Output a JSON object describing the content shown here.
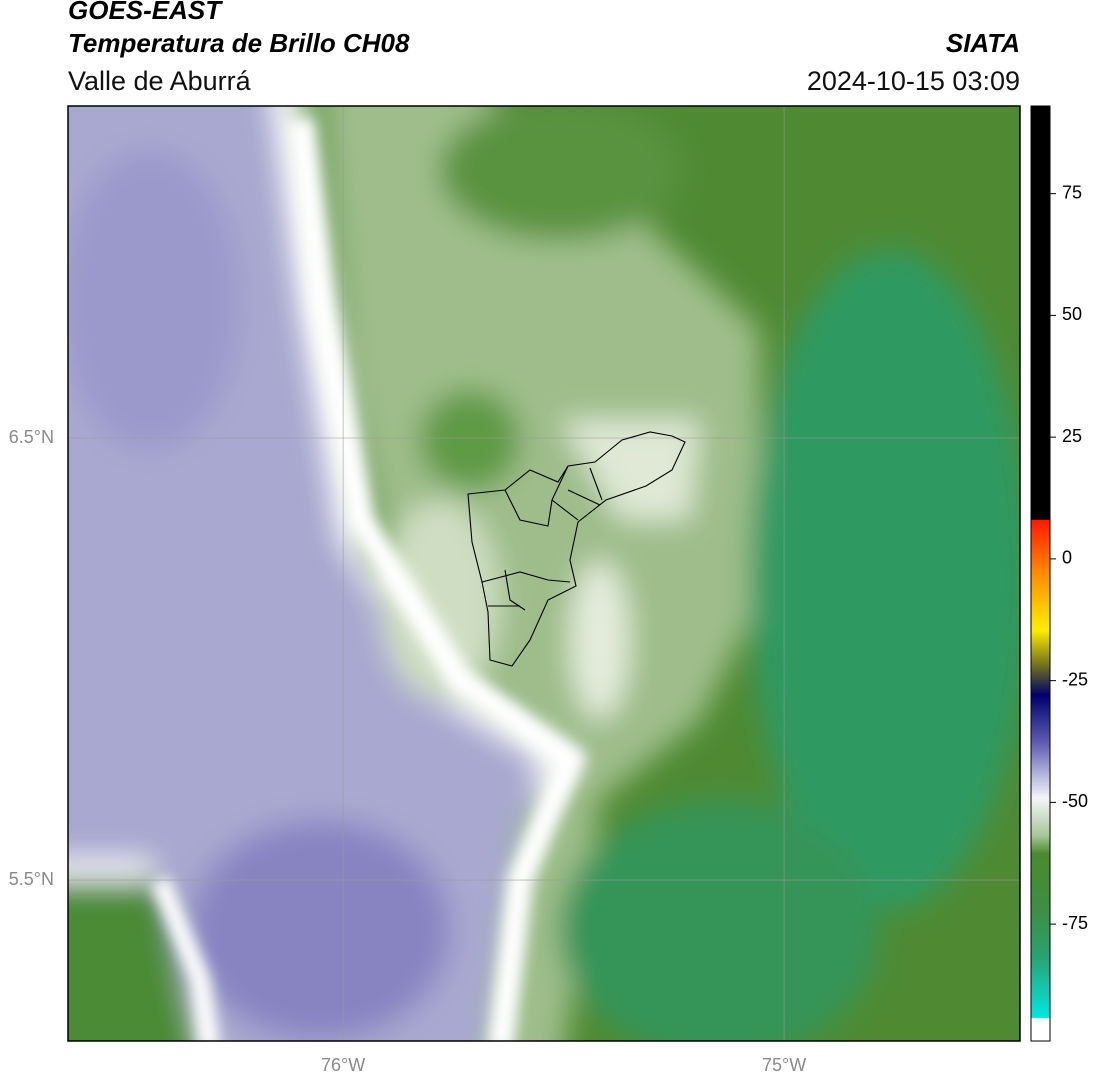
{
  "header": {
    "title": "GOES-EAST",
    "subtitle": "Temperatura de Brillo CH08",
    "region": "Valle de Aburrá",
    "source": "SIATA",
    "datetime": "2024-10-15 03:09"
  },
  "map": {
    "lonlim": [
      -76.624,
      -74.465
    ],
    "latlim": [
      5.136,
      7.251
    ],
    "lonticks": [
      {
        "value": -76,
        "label": "76°W"
      },
      {
        "value": -75,
        "label": "75°W"
      }
    ],
    "latticks": [
      {
        "value": 6.5,
        "label": "6.5°N"
      },
      {
        "value": 5.5,
        "label": "5.5°N"
      }
    ]
  },
  "colorbar": {
    "lim": [
      -99,
      93
    ],
    "ticks": [
      75,
      50,
      25,
      0,
      -25,
      -50,
      -75
    ]
  }
}
